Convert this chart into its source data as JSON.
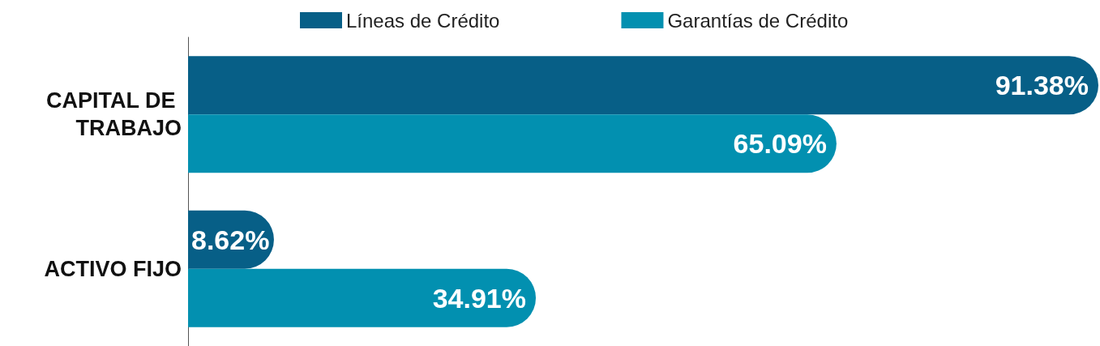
{
  "chart_data": {
    "type": "bar",
    "orientation": "horizontal",
    "categories": [
      "CAPITAL DE TRABAJO",
      "ACTIVO FIJO"
    ],
    "series": [
      {
        "name": "Líneas de Crédito",
        "color": "#075f87",
        "values": [
          91.38,
          8.62
        ],
        "value_labels": [
          "91.38%",
          "8.62%"
        ]
      },
      {
        "name": "Garantías de Crédito",
        "color": "#0290b0",
        "values": [
          65.09,
          34.91
        ],
        "value_labels": [
          "65.09%",
          "34.91%"
        ]
      }
    ],
    "legend": "top",
    "grid": false
  }
}
